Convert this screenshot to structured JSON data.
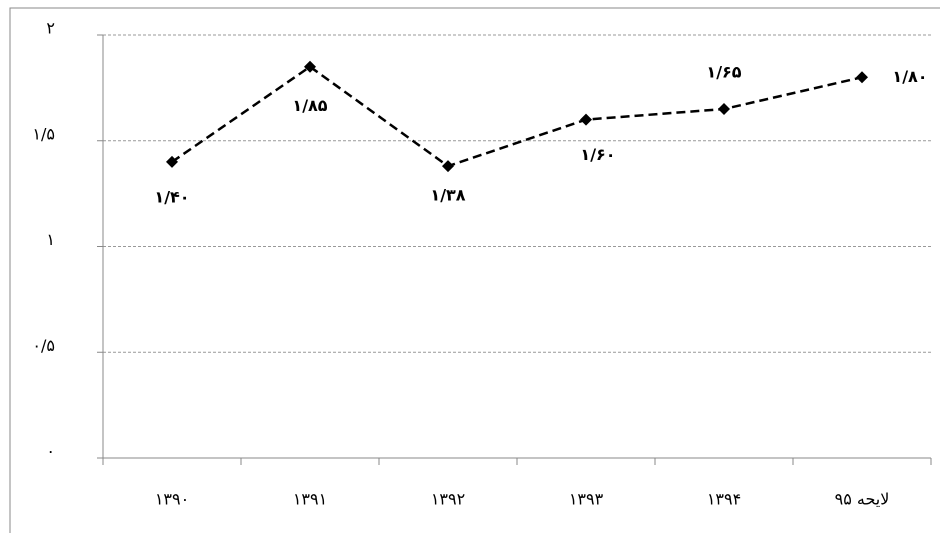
{
  "chart_data": {
    "type": "line",
    "categories": [
      "۱۳۹۰",
      "۱۳۹۱",
      "۱۳۹۲",
      "۱۳۹۳",
      "۱۳۹۴",
      "لایحه ۹۵"
    ],
    "series": [
      {
        "color": "#000000",
        "values": [
          1.4,
          1.85,
          1.38,
          1.6,
          1.65,
          1.8
        ],
        "value_labels": [
          "۱/۴۰",
          "۱/۸۵",
          "۱/۳۸",
          "۱/۶۰",
          "۱/۶۵",
          "۱/۸۰"
        ]
      }
    ],
    "ylim": [
      0,
      2
    ],
    "yticks": [
      {
        "value": 0,
        "label": "۰"
      },
      {
        "value": 0.5,
        "label": "۰/۵"
      },
      {
        "value": 1,
        "label": "۱"
      },
      {
        "value": 1.5,
        "label": "۱/۵"
      },
      {
        "value": 2,
        "label": "۲"
      }
    ],
    "grid": true
  }
}
